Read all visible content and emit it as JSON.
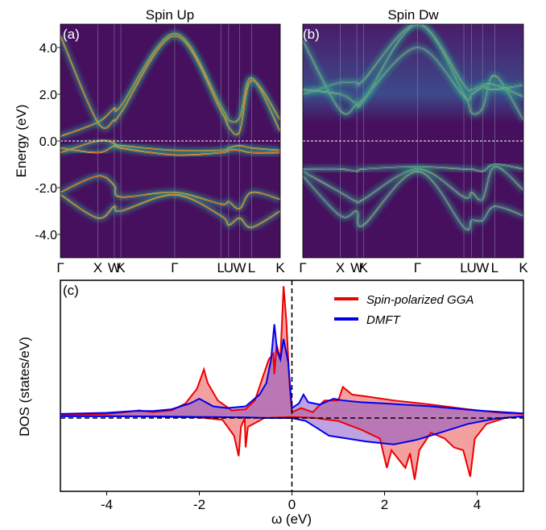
{
  "panels": {
    "a": {
      "label": "(a)",
      "title": "Spin Up",
      "ylabel": "Energy (eV)"
    },
    "b": {
      "label": "(b)",
      "title": "Spin Dw"
    },
    "c": {
      "label": "(c)",
      "ylabel": "DOS (states/eV)",
      "xlabel": "ω (eV)"
    }
  },
  "colors": {
    "gga": "#ee0000",
    "dmft": "#0000ee",
    "gga_fill": "#f08080",
    "overlap_fill": "#8a55c8",
    "dmft_fill": "#8b8bf0",
    "spectral_bg": "#46105f",
    "band_hot": "#e6f04a",
    "band_mid": "#28b08a"
  },
  "chart_data": [
    {
      "type": "heatmap",
      "panel": "a",
      "title": "Spin Up",
      "ylabel": "Energy (eV)",
      "xticks": [
        "Γ",
        "X",
        "W",
        "K",
        "Γ",
        "L",
        "U",
        "W",
        "L",
        "K"
      ],
      "k_positions": [
        0,
        0.17,
        0.245,
        0.275,
        0.52,
        0.73,
        0.765,
        0.815,
        0.87,
        1.0
      ],
      "yticks": [
        4.0,
        2.0,
        0.0,
        -2.0,
        -4.0
      ],
      "ylim": [
        -5,
        5
      ],
      "fermi_level": 0.0,
      "bands": [
        [
          -0.3,
          -0.5,
          -0.2,
          -0.2,
          -0.4,
          -0.4,
          -0.3,
          -0.2,
          -0.3,
          -0.4
        ],
        [
          -0.5,
          0.0,
          -0.1,
          -0.3,
          -0.6,
          -0.5,
          -0.4,
          -0.4,
          -0.5,
          -0.5
        ],
        [
          -2.2,
          -1.5,
          -1.9,
          -2.4,
          -2.2,
          -2.7,
          -2.6,
          -2.9,
          -2.2,
          -2.5
        ],
        [
          -2.3,
          -3.3,
          -2.8,
          -3.0,
          -2.3,
          -3.2,
          -3.6,
          -3.3,
          -3.7,
          -3.0
        ],
        [
          0.2,
          0.8,
          1.4,
          1.5,
          4.6,
          1.5,
          0.9,
          1.0,
          2.7,
          0.4
        ],
        [
          4.5,
          0.8,
          0.9,
          1.2,
          4.5,
          1.3,
          0.6,
          0.4,
          2.6,
          0.9
        ]
      ]
    },
    {
      "type": "heatmap",
      "panel": "b",
      "title": "Spin Dw",
      "xticks": [
        "Γ",
        "X",
        "W",
        "K",
        "Γ",
        "L",
        "U",
        "W",
        "L",
        "K"
      ],
      "k_positions": [
        0,
        0.17,
        0.245,
        0.275,
        0.52,
        0.73,
        0.765,
        0.815,
        0.87,
        1.0
      ],
      "ylim": [
        -5,
        5
      ],
      "fermi_level": 0.0,
      "bands": [
        [
          -1.2,
          -1.2,
          -1.3,
          -1.2,
          -1.1,
          -1.2,
          -1.2,
          -1.3,
          -1.0,
          -1.2
        ],
        [
          -1.3,
          -2.2,
          -2.6,
          -2.5,
          -1.2,
          -2.4,
          -2.2,
          -2.5,
          -1.1,
          -2.1
        ],
        [
          -1.5,
          -3.2,
          -3.0,
          -3.6,
          -1.3,
          -3.7,
          -3.4,
          -3.4,
          -2.8,
          -3.2
        ],
        [
          4.3,
          1.3,
          1.6,
          1.7,
          5.0,
          2.0,
          1.2,
          1.4,
          2.8,
          0.9
        ],
        [
          2.0,
          2.5,
          2.5,
          2.6,
          5.0,
          2.4,
          2.2,
          2.4,
          2.4,
          1.9
        ],
        [
          2.2,
          2.0,
          1.6,
          1.8,
          4.0,
          1.9,
          2.0,
          2.3,
          2.2,
          2.4
        ]
      ]
    },
    {
      "type": "area",
      "panel": "c",
      "xlabel": "ω (eV)",
      "ylabel": "DOS (states/eV)",
      "xlim": [
        -5,
        5
      ],
      "ylim": [
        -1.3,
        2.3
      ],
      "xticks": [
        -4,
        -2,
        0,
        2,
        4
      ],
      "legend_position": "top-right",
      "series": [
        {
          "name": "Spin-polarized GGA",
          "up": [
            [
              -5,
              0.01
            ],
            [
              -4,
              0.02
            ],
            [
              -3.6,
              0.05
            ],
            [
              -3.3,
              0.08
            ],
            [
              -3,
              0.05
            ],
            [
              -2.6,
              0.08
            ],
            [
              -2.3,
              0.2
            ],
            [
              -2.05,
              0.45
            ],
            [
              -1.9,
              0.78
            ],
            [
              -1.82,
              0.55
            ],
            [
              -1.6,
              0.25
            ],
            [
              -1.3,
              0.08
            ],
            [
              -1.0,
              0.1
            ],
            [
              -0.8,
              0.25
            ],
            [
              -0.65,
              0.6
            ],
            [
              -0.5,
              0.95
            ],
            [
              -0.4,
              1.05
            ],
            [
              -0.38,
              0.7
            ],
            [
              -0.33,
              1.2
            ],
            [
              -0.25,
              0.95
            ],
            [
              -0.18,
              2.2
            ],
            [
              -0.12,
              1.6
            ],
            [
              -0.05,
              0.5
            ],
            [
              0,
              0.05
            ],
            [
              0.2,
              0.12
            ],
            [
              0.45,
              0.05
            ],
            [
              0.7,
              0.25
            ],
            [
              1.0,
              0.25
            ],
            [
              1.1,
              0.48
            ],
            [
              1.3,
              0.35
            ],
            [
              1.6,
              0.32
            ],
            [
              2.2,
              0.25
            ],
            [
              3,
              0.18
            ],
            [
              3.8,
              0.1
            ],
            [
              4.5,
              0.04
            ],
            [
              5,
              0.02
            ]
          ],
          "down": [
            [
              -5,
              -0.01
            ],
            [
              -3.5,
              -0.02
            ],
            [
              -2,
              -0.04
            ],
            [
              -1.5,
              -0.08
            ],
            [
              -1.25,
              -0.35
            ],
            [
              -1.15,
              -0.7
            ],
            [
              -1.1,
              -0.2
            ],
            [
              -1.02,
              -0.05
            ],
            [
              -1.0,
              -0.55
            ],
            [
              -0.95,
              -0.2
            ],
            [
              -0.6,
              -0.05
            ],
            [
              0,
              -0.03
            ],
            [
              0.5,
              -0.05
            ],
            [
              1.0,
              -0.1
            ],
            [
              1.5,
              -0.25
            ],
            [
              1.9,
              -0.4
            ],
            [
              2.05,
              -0.9
            ],
            [
              2.15,
              -0.6
            ],
            [
              2.3,
              -0.75
            ],
            [
              2.45,
              -0.9
            ],
            [
              2.55,
              -0.65
            ],
            [
              2.65,
              -1.1
            ],
            [
              2.75,
              -0.6
            ],
            [
              3,
              -0.3
            ],
            [
              3.3,
              -0.4
            ],
            [
              3.5,
              -0.55
            ],
            [
              3.7,
              -0.6
            ],
            [
              3.85,
              -1.05
            ],
            [
              3.95,
              -0.4
            ],
            [
              4.2,
              -0.15
            ],
            [
              4.6,
              -0.05
            ],
            [
              5,
              -0.02
            ]
          ]
        },
        {
          "name": "DMFT",
          "up": [
            [
              -5,
              0.02
            ],
            [
              -4,
              0.04
            ],
            [
              -3.4,
              0.07
            ],
            [
              -3,
              0.07
            ],
            [
              -2.6,
              0.1
            ],
            [
              -2.2,
              0.2
            ],
            [
              -2,
              0.28
            ],
            [
              -1.7,
              0.15
            ],
            [
              -1.4,
              0.12
            ],
            [
              -1.0,
              0.15
            ],
            [
              -0.7,
              0.35
            ],
            [
              -0.55,
              0.55
            ],
            [
              -0.45,
              0.95
            ],
            [
              -0.38,
              1.55
            ],
            [
              -0.32,
              1.1
            ],
            [
              -0.25,
              0.95
            ],
            [
              -0.18,
              1.3
            ],
            [
              -0.08,
              0.9
            ],
            [
              0,
              0.12
            ],
            [
              0.15,
              0.2
            ],
            [
              0.25,
              0.35
            ],
            [
              0.35,
              0.22
            ],
            [
              0.6,
              0.18
            ],
            [
              0.9,
              0.28
            ],
            [
              1.1,
              0.25
            ],
            [
              1.5,
              0.22
            ],
            [
              2,
              0.2
            ],
            [
              3,
              0.15
            ],
            [
              4,
              0.08
            ],
            [
              5,
              0.03
            ]
          ],
          "down": [
            [
              -5,
              -0.02
            ],
            [
              -3,
              -0.02
            ],
            [
              -2,
              -0.03
            ],
            [
              -1,
              -0.04
            ],
            [
              -0.5,
              -0.05
            ],
            [
              0,
              -0.05
            ],
            [
              0.3,
              -0.1
            ],
            [
              0.5,
              -0.2
            ],
            [
              0.8,
              -0.35
            ],
            [
              1.2,
              -0.4
            ],
            [
              1.6,
              -0.45
            ],
            [
              2.2,
              -0.5
            ],
            [
              2.7,
              -0.42
            ],
            [
              3.2,
              -0.3
            ],
            [
              3.8,
              -0.15
            ],
            [
              4.4,
              -0.06
            ],
            [
              5,
              -0.02
            ]
          ]
        }
      ]
    }
  ]
}
